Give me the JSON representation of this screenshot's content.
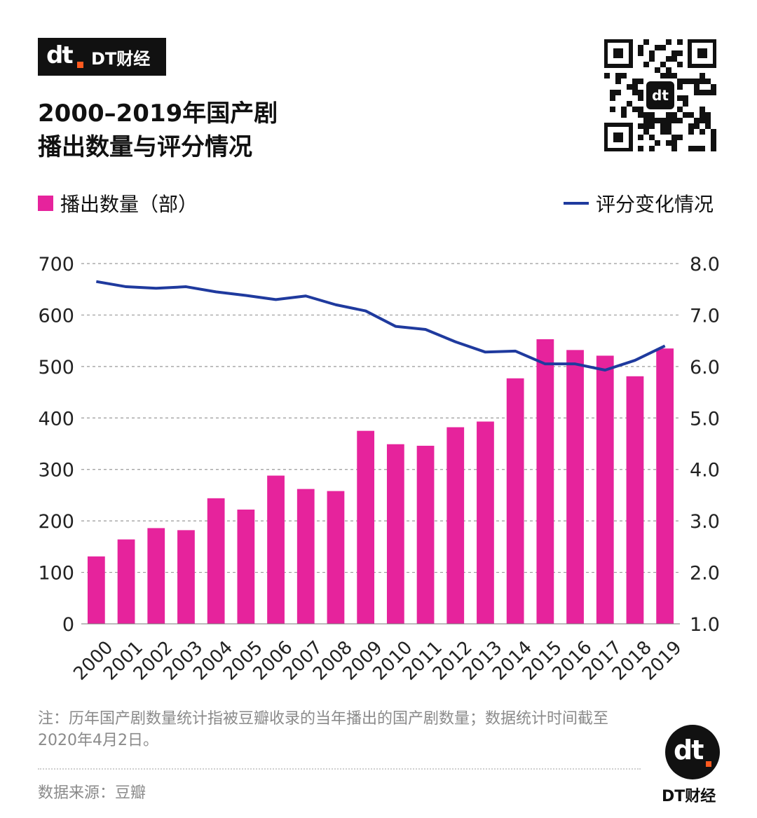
{
  "brand": {
    "mark": "dt",
    "name": "DT财经"
  },
  "title": {
    "line1": "2000–2019年国产剧",
    "line2": "播出数量与评分情况"
  },
  "legend": {
    "bars": "播出数量（部）",
    "line": "评分变化情况"
  },
  "colors": {
    "bar": "#e6239c",
    "line": "#1f3a9e",
    "grid": "#9a9a9a",
    "brand_dot": "#ff5a1f"
  },
  "icons": {
    "qr": "qr-code-icon",
    "logo": "dt-logo-icon"
  },
  "chart_data": {
    "type": "bar",
    "categories": [
      "2000",
      "2001",
      "2002",
      "2003",
      "2004",
      "2005",
      "2006",
      "2007",
      "2008",
      "2009",
      "2010",
      "2011",
      "2012",
      "2013",
      "2014",
      "2015",
      "2016",
      "2017",
      "2018",
      "2019"
    ],
    "series": [
      {
        "name": "播出数量（部）",
        "type": "bar",
        "axis": "left",
        "values": [
          131,
          164,
          186,
          182,
          244,
          222,
          288,
          262,
          258,
          375,
          349,
          346,
          382,
          393,
          477,
          553,
          532,
          521,
          481,
          535
        ]
      },
      {
        "name": "评分变化情况",
        "type": "line",
        "axis": "right",
        "values": [
          7.65,
          7.55,
          7.52,
          7.55,
          7.45,
          7.38,
          7.3,
          7.37,
          7.2,
          7.08,
          6.78,
          6.72,
          6.48,
          6.28,
          6.3,
          6.05,
          6.05,
          5.93,
          6.12,
          6.4
        ]
      }
    ],
    "y_left": {
      "lim": [
        0,
        700
      ],
      "ticks": [
        "0",
        "100",
        "200",
        "300",
        "400",
        "500",
        "600",
        "700"
      ]
    },
    "y_right": {
      "lim": [
        1.0,
        8.0
      ],
      "ticks": [
        "1.0",
        "2.0",
        "3.0",
        "4.0",
        "5.0",
        "6.0",
        "7.0",
        "8.0"
      ]
    },
    "grid": true,
    "legend_position": "top"
  },
  "note": "注：历年国产剧数量统计指被豆瓣收录的当年播出的国产剧数量；数据统计时间截至2020年4月2日。",
  "source": "数据来源：豆瓣",
  "footer_brand": "DT财经"
}
